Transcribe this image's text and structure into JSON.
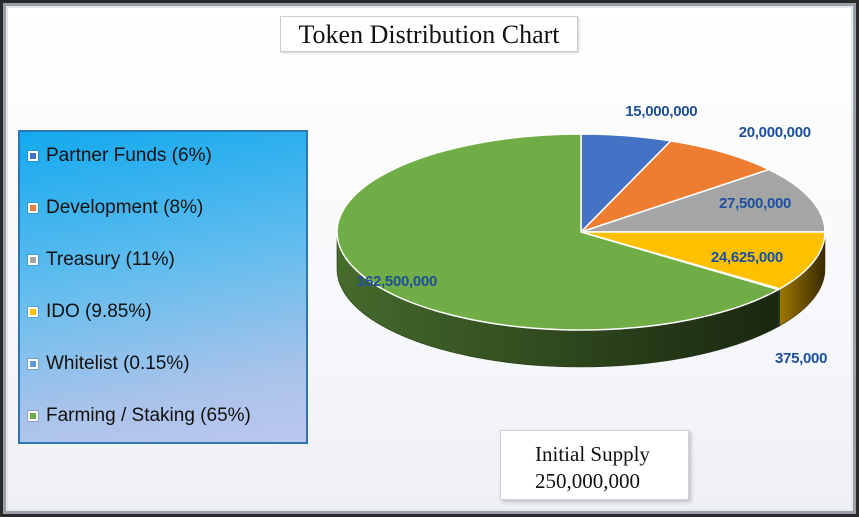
{
  "chart_data": {
    "type": "pie",
    "title": "Token Distribution Chart",
    "style": "3d",
    "legend_position": "left",
    "slices": [
      {
        "name": "Partner Funds (6%)",
        "value": 15000000,
        "label": "15,000,000",
        "color": "#4472c4"
      },
      {
        "name": "Development (8%)",
        "value": 20000000,
        "label": "20,000,000",
        "color": "#ed7d31"
      },
      {
        "name": "Treasury (11%)",
        "value": 27500000,
        "label": "27,500,000",
        "color": "#a5a5a5"
      },
      {
        "name": "IDO (9.85%)",
        "value": 24625000,
        "label": "24,625,000",
        "color": "#ffc000"
      },
      {
        "name": "Whitelist (0.15%)",
        "value": 375000,
        "label": "375,000",
        "color": "#5b9bd5"
      },
      {
        "name": "Farming / Staking (65%)",
        "value": 162500000,
        "label": "162,500,000",
        "color": "#70ad47"
      }
    ]
  },
  "supply": {
    "line1": "Initial Supply",
    "line2": "250,000,000"
  }
}
